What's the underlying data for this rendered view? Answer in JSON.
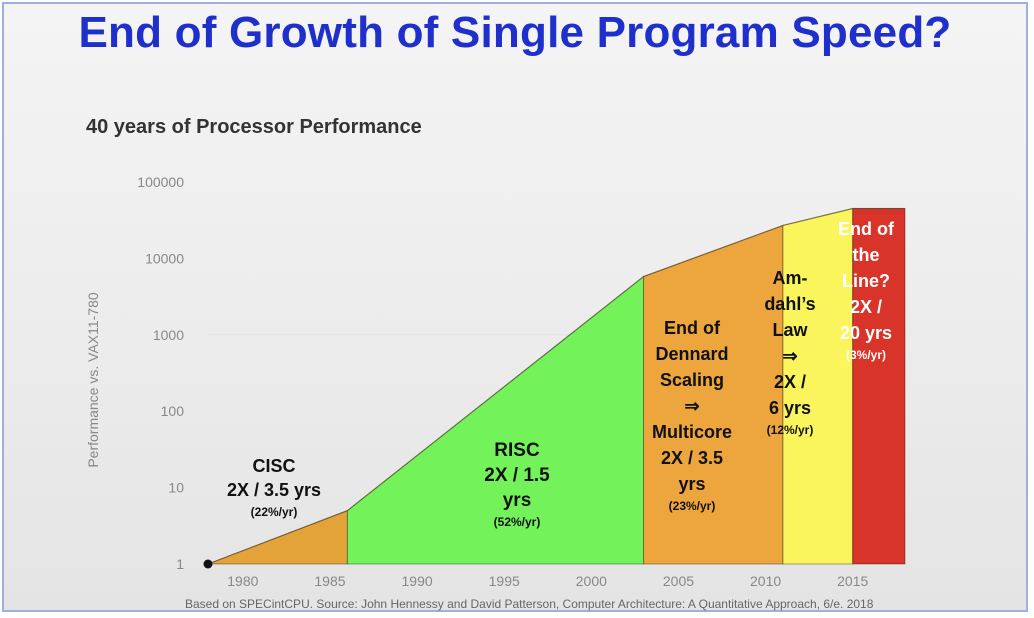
{
  "slide_title": "End of Growth of Single Program Speed?",
  "source_note": "Based on SPECintCPU. Source: John Hennessy and David Patterson, Computer Architecture: A Quantitative Approach, 6/e. 2018",
  "colors": {
    "title": "#1f2fcc",
    "cisc": "#e3a338",
    "risc": "#73f25a",
    "dennard": "#eca63d",
    "amdahl": "#fbf55d",
    "end_of_line": "#d9342a",
    "end_of_line_text": "#ffffff",
    "region_text": "#111111"
  },
  "chart_data": {
    "type": "area",
    "title": "40 years of Processor Performance",
    "ylabel": "Performance vs. VAX11-780",
    "xlabel": "",
    "yscale": "log",
    "ylim": [
      1,
      100000
    ],
    "xlim": [
      1978,
      2018
    ],
    "yticks": [
      "1",
      "10",
      "100",
      "1000",
      "10000",
      "100000"
    ],
    "xticks": [
      "1980",
      "1985",
      "1990",
      "1995",
      "2000",
      "2005",
      "2010",
      "2015"
    ],
    "x": [
      1978,
      1986,
      2003,
      2011,
      2015,
      2018
    ],
    "y": [
      1,
      5,
      5800,
      27000,
      45000,
      45000
    ],
    "regions": [
      {
        "name": "cisc",
        "x_start": 1978,
        "x_end": 1986,
        "lines": [
          "CISC",
          "2X / 3.5 yrs"
        ],
        "rate": "(22%/yr)"
      },
      {
        "name": "risc",
        "x_start": 1986,
        "x_end": 2003,
        "lines": [
          "RISC",
          "2X / 1.5",
          "yrs"
        ],
        "rate": "(52%/yr)"
      },
      {
        "name": "dennard",
        "x_start": 2003,
        "x_end": 2011,
        "lines": [
          "End of",
          "Dennard",
          "Scaling",
          "⇒",
          "Multicore",
          "2X / 3.5",
          "yrs"
        ],
        "rate": "(23%/yr)"
      },
      {
        "name": "amdahl",
        "x_start": 2011,
        "x_end": 2015,
        "lines": [
          "Am-",
          "dahl’s",
          "Law",
          "⇒",
          "2X /",
          "6 yrs"
        ],
        "rate": "(12%/yr)"
      },
      {
        "name": "end_of_line",
        "x_start": 2015,
        "x_end": 2018,
        "lines": [
          "End of",
          "the",
          "Line?",
          "2X /",
          "20 yrs"
        ],
        "rate": "(3%/yr)"
      }
    ],
    "grid": false
  }
}
